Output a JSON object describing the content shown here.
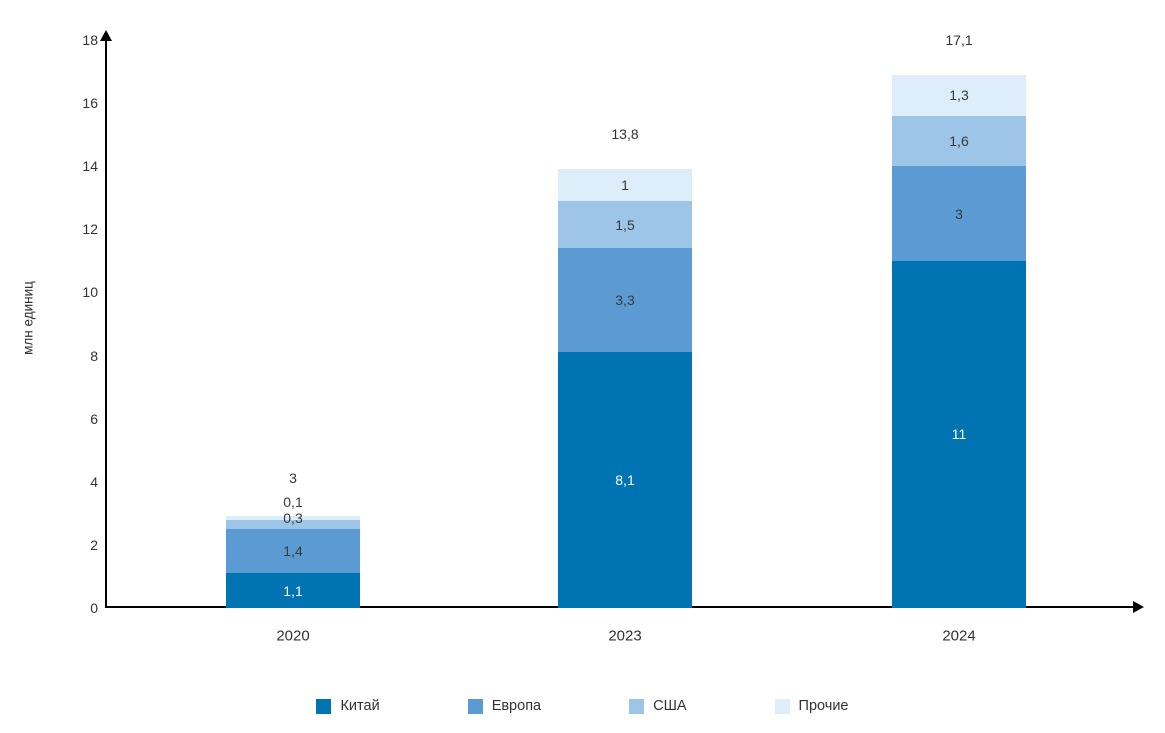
{
  "chart_data": {
    "type": "bar",
    "stacked": true,
    "ylabel": "млн единиц",
    "ylim": [
      0,
      18
    ],
    "ytick_labels": [
      "0",
      "2",
      "4",
      "6",
      "8",
      "10",
      "12",
      "14",
      "16",
      "18"
    ],
    "grid": false,
    "legend_position": "bottom",
    "categories": [
      "2020",
      "2023",
      "2024"
    ],
    "series": [
      {
        "name": "Китай",
        "color": "#0073b3",
        "label_color": "#ffffff",
        "values": [
          1.1,
          8.1,
          11
        ],
        "labels": [
          "1,1",
          "8,1",
          "11"
        ]
      },
      {
        "name": "Европа",
        "color": "#5b9ad3",
        "label_color": "#3a3a3a",
        "values": [
          1.4,
          3.3,
          3
        ],
        "labels": [
          "1,4",
          "3,3",
          "3"
        ]
      },
      {
        "name": "США",
        "color": "#9cc5e8",
        "label_color": "#3a3a3a",
        "values": [
          0.3,
          1.5,
          1.6
        ],
        "labels": [
          "0,3",
          "1,5",
          "1,6"
        ]
      },
      {
        "name": "Прочие",
        "color": "#ddeefa",
        "label_color": "#3a3a3a",
        "values": [
          0.1,
          1,
          1.3
        ],
        "labels": [
          "0,1",
          "1",
          "1,3"
        ]
      }
    ],
    "totals": [
      "3",
      "13,8",
      "17,1"
    ]
  }
}
